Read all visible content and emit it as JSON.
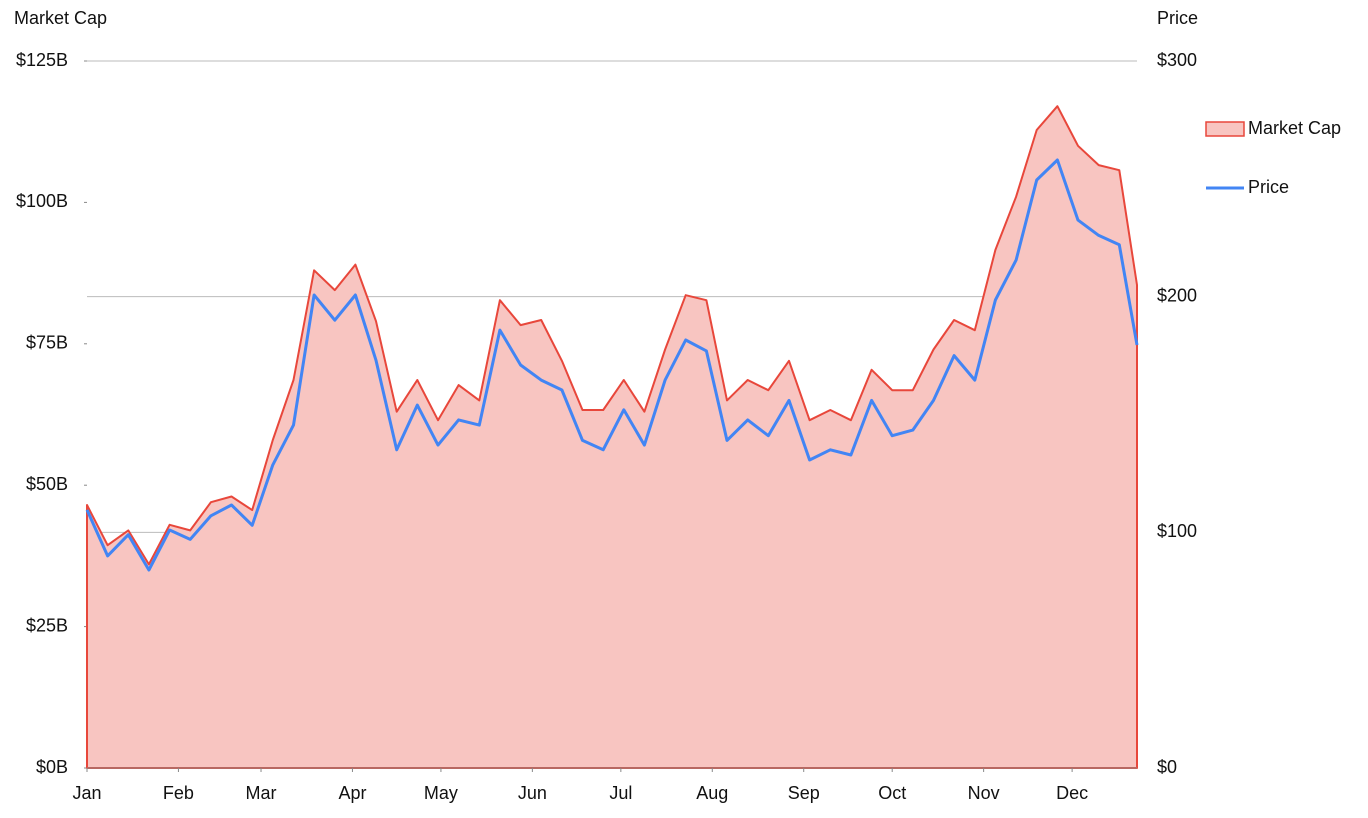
{
  "chart_data": {
    "type": "area-line",
    "y_label": "Market Cap",
    "y2_label": "Price",
    "x": [
      0,
      7,
      14,
      21,
      28,
      35,
      42,
      49,
      56,
      63,
      70,
      77,
      84,
      91,
      98,
      105,
      112,
      119,
      126,
      133,
      140,
      147,
      154,
      161,
      168,
      175,
      182,
      189,
      196,
      203,
      210,
      217,
      224,
      231,
      238,
      245,
      252,
      259,
      266,
      273,
      280,
      287,
      294,
      301,
      308,
      315,
      322,
      329,
      336,
      343,
      350,
      356
    ],
    "xlim": [
      0,
      356
    ],
    "xticks": [
      {
        "value": 0,
        "label": "Jan"
      },
      {
        "value": 31,
        "label": "Feb"
      },
      {
        "value": 59,
        "label": "Mar"
      },
      {
        "value": 90,
        "label": "Apr"
      },
      {
        "value": 120,
        "label": "May"
      },
      {
        "value": 151,
        "label": "Jun"
      },
      {
        "value": 181,
        "label": "Jul"
      },
      {
        "value": 212,
        "label": "Aug"
      },
      {
        "value": 243,
        "label": "Sep"
      },
      {
        "value": 273,
        "label": "Oct"
      },
      {
        "value": 304,
        "label": "Nov"
      },
      {
        "value": 334,
        "label": "Dec"
      }
    ],
    "series": [
      {
        "name": "Market Cap",
        "color": "#e8473b",
        "fill": "#f8c5c1",
        "values": [
          46.5,
          39.4,
          42,
          36,
          43,
          42,
          47,
          48,
          45.6,
          58,
          68.6,
          88,
          84.5,
          89,
          79,
          63,
          68.6,
          61.5,
          67.7,
          65,
          82.7,
          78.3,
          79.2,
          72,
          63.3,
          63.3,
          68.6,
          63,
          74,
          83.6,
          82.7,
          65,
          68.6,
          66.8,
          72,
          61.5,
          63.3,
          61.5,
          70.4,
          66.8,
          66.8,
          74,
          79.2,
          77.4,
          91.6,
          101,
          112.8,
          117,
          110,
          106.6,
          105.7,
          85.4
        ]
      },
      {
        "name": "Price",
        "color": "#4285f4",
        "axis": "y2",
        "values": [
          109.5,
          90,
          99,
          84,
          101,
          97,
          107,
          111.6,
          103,
          128.6,
          145.5,
          200.7,
          190,
          200.7,
          173,
          135,
          154,
          137,
          147.7,
          145.5,
          185.8,
          171,
          164.6,
          160.4,
          139,
          135,
          152,
          137,
          164.6,
          181.6,
          177,
          139,
          147.7,
          141,
          156,
          130.7,
          135,
          132.8,
          156,
          141,
          143.4,
          156,
          175,
          164.6,
          198.6,
          215.5,
          249.5,
          258,
          232.5,
          226,
          222,
          179.5
        ]
      }
    ],
    "ylim": [
      0,
      125
    ],
    "yticks": [
      {
        "value": 0,
        "label": "$0B"
      },
      {
        "value": 25,
        "label": "$25B"
      },
      {
        "value": 50,
        "label": "$50B"
      },
      {
        "value": 75,
        "label": "$75B"
      },
      {
        "value": 100,
        "label": "$100B"
      },
      {
        "value": 125,
        "label": "$125B"
      }
    ],
    "y2lim": [
      0,
      300
    ],
    "y2ticks": [
      {
        "value": 0,
        "label": "$0"
      },
      {
        "value": 100,
        "label": "$100"
      },
      {
        "value": 200,
        "label": "$200"
      },
      {
        "value": 300,
        "label": "$300"
      }
    ],
    "grid": true,
    "legend": "right"
  }
}
